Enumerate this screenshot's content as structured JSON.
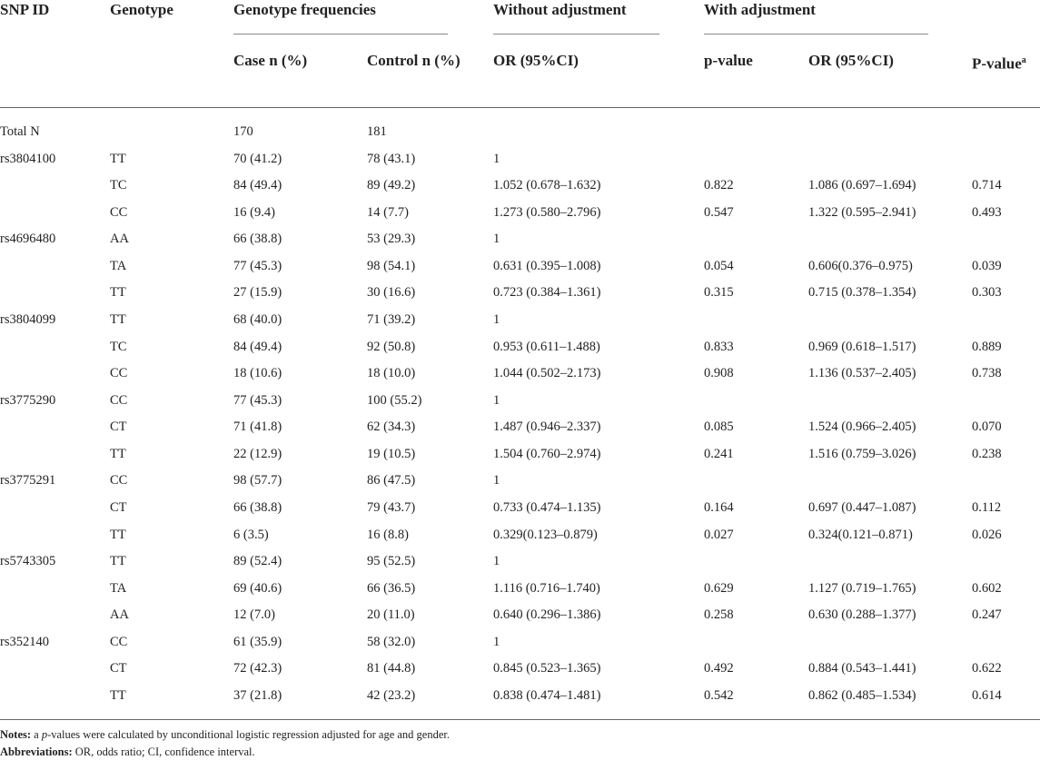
{
  "header": {
    "row1": [
      "SNP ID",
      "Genotype",
      "Genotype frequencies",
      "Without adjustment",
      "With adjustment"
    ],
    "row2": [
      "Case n (%)",
      "Control n (%)",
      "OR (95%CI)",
      "p-value",
      "OR (95%CI)",
      {
        "text": "P-value",
        "sup": "a"
      }
    ]
  },
  "table": {
    "rows": [
      [
        "Total N",
        null,
        "170",
        "181",
        null,
        null,
        null,
        null
      ],
      [
        "rs3804100",
        "TT",
        "70 (41.2)",
        "78 (43.1)",
        "1",
        null,
        null,
        null
      ],
      [
        null,
        "TC",
        "84 (49.4)",
        "89 (49.2)",
        "1.052 (0.678–1.632)",
        "0.822",
        "1.086 (0.697–1.694)",
        "0.714"
      ],
      [
        null,
        "CC",
        "16 (9.4)",
        "14 (7.7)",
        "1.273 (0.580–2.796)",
        "0.547",
        "1.322 (0.595–2.941)",
        "0.493"
      ],
      [
        "rs4696480",
        "AA",
        "66 (38.8)",
        "53 (29.3)",
        "1",
        null,
        null,
        null
      ],
      [
        null,
        "TA",
        "77 (45.3)",
        "98 (54.1)",
        "0.631 (0.395–1.008)",
        "0.054",
        "0.606(0.376–0.975)",
        "0.039"
      ],
      [
        null,
        "TT",
        "27 (15.9)",
        "30 (16.6)",
        "0.723 (0.384–1.361)",
        "0.315",
        "0.715 (0.378–1.354)",
        "0.303"
      ],
      [
        "rs3804099",
        "TT",
        "68 (40.0)",
        "71 (39.2)",
        "1",
        null,
        null,
        null
      ],
      [
        null,
        "TC",
        "84 (49.4)",
        "92 (50.8)",
        "0.953 (0.611–1.488)",
        "0.833",
        "0.969 (0.618–1.517)",
        "0.889"
      ],
      [
        null,
        "CC",
        "18 (10.6)",
        "18 (10.0)",
        "1.044 (0.502–2.173)",
        "0.908",
        "1.136 (0.537–2.405)",
        "0.738"
      ],
      [
        "rs3775290",
        "CC",
        "77 (45.3)",
        "100 (55.2)",
        "1",
        null,
        null,
        null
      ],
      [
        null,
        "CT",
        "71 (41.8)",
        "62 (34.3)",
        "1.487 (0.946–2.337)",
        "0.085",
        "1.524 (0.966–2.405)",
        "0.070"
      ],
      [
        null,
        "TT",
        "22 (12.9)",
        "19 (10.5)",
        "1.504 (0.760–2.974)",
        "0.241",
        "1.516 (0.759–3.026)",
        "0.238"
      ],
      [
        "rs3775291",
        "CC",
        "98 (57.7)",
        "86 (47.5)",
        "1",
        null,
        null,
        null
      ],
      [
        null,
        "CT",
        "66 (38.8)",
        "79 (43.7)",
        "0.733 (0.474–1.135)",
        "0.164",
        "0.697 (0.447–1.087)",
        "0.112"
      ],
      [
        null,
        "TT",
        "6 (3.5)",
        "16 (8.8)",
        "0.329(0.123–0.879)",
        "0.027",
        "0.324(0.121–0.871)",
        "0.026"
      ],
      [
        "rs5743305",
        "TT",
        "89 (52.4)",
        "95 (52.5)",
        "1",
        null,
        null,
        null
      ],
      [
        null,
        "TA",
        "69 (40.6)",
        "66 (36.5)",
        "1.116 (0.716–1.740)",
        "0.629",
        "1.127 (0.719–1.765)",
        "0.602"
      ],
      [
        null,
        "AA",
        "12 (7.0)",
        "20 (11.0)",
        "0.640 (0.296–1.386)",
        "0.258",
        "0.630 (0.288–1.377)",
        "0.247"
      ],
      [
        "rs352140",
        "CC",
        "61 (35.9)",
        "58 (32.0)",
        "1",
        null,
        null,
        null
      ],
      [
        null,
        "CT",
        "72 (42.3)",
        "81 (44.8)",
        "0.845 (0.523–1.365)",
        "0.492",
        "0.884 (0.543–1.441)",
        "0.622"
      ],
      [
        null,
        "TT",
        "37 (21.8)",
        "42 (23.2)",
        "0.838 (0.474–1.481)",
        "0.542",
        "0.862 (0.485–1.534)",
        "0.614"
      ]
    ]
  },
  "notes": {
    "label": "Notes:",
    "marker": "a",
    "emphasis": "p",
    "text": "-values were calculated by unconditional logistic regression adjusted for age and gender."
  },
  "abbreviations": {
    "label": "Abbreviations:",
    "text": "OR, odds ratio; CI, confidence interval."
  }
}
